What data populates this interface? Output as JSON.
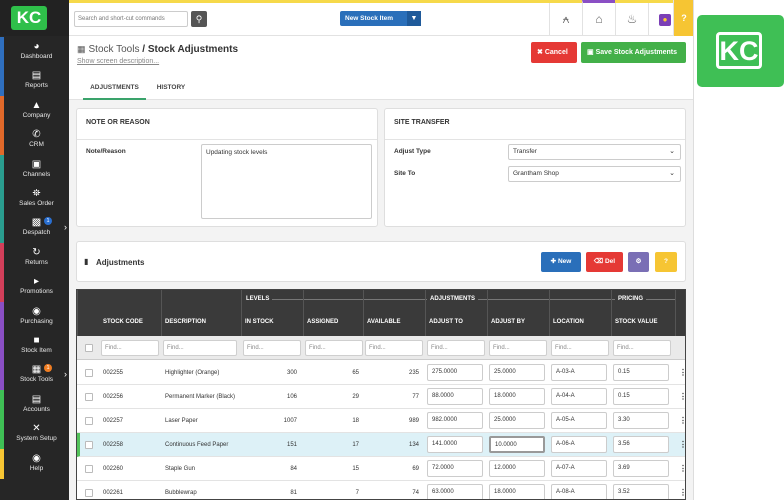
{
  "brand": {
    "logo_text": "KC",
    "accent": "#3fbf55"
  },
  "sidebar": {
    "items": [
      {
        "label": "Dashboard",
        "icon": "dashboard-icon",
        "stripe": "#2f6fbf"
      },
      {
        "label": "Reports",
        "icon": "reports-icon",
        "stripe": "#2f6fbf"
      },
      {
        "label": "Company",
        "icon": "company-icon",
        "stripe": "#e0692a"
      },
      {
        "label": "CRM",
        "icon": "phone-icon",
        "stripe": "#e0692a"
      },
      {
        "label": "Channels",
        "icon": "channels-icon",
        "stripe": "#2a9d8f"
      },
      {
        "label": "Sales Order",
        "icon": "cart-icon",
        "stripe": "#2a9d8f"
      },
      {
        "label": "Despatch",
        "icon": "truck-icon",
        "stripe": "#2a9d8f",
        "badge": "1"
      },
      {
        "label": "Returns",
        "icon": "returns-icon",
        "stripe": "#d23f5a"
      },
      {
        "label": "Promotions",
        "icon": "megaphone-icon",
        "stripe": "#d23f5a"
      },
      {
        "label": "Purchasing",
        "icon": "purchasing-icon",
        "stripe": "#8a4fc4"
      },
      {
        "label": "Stock Item",
        "icon": "box-icon",
        "stripe": "#8a4fc4"
      },
      {
        "label": "Stock Tools",
        "icon": "stock-tools-icon",
        "stripe": "#8a4fc4",
        "badge": "1"
      },
      {
        "label": "Accounts",
        "icon": "accounts-icon",
        "stripe": "#3fbf55"
      },
      {
        "label": "System Setup",
        "icon": "wrench-icon",
        "stripe": "#3fbf55"
      },
      {
        "label": "Help",
        "icon": "help-icon",
        "stripe": "#f6c533"
      }
    ]
  },
  "topbar": {
    "search_placeholder": "Search and short-cut commands",
    "new_stock_label": "New Stock Item",
    "help_label": "?"
  },
  "header": {
    "section": "Stock Tools",
    "separator": " / ",
    "title": "Stock Adjustments",
    "show_desc": "Show screen description...",
    "cancel_label": "Cancel",
    "save_label": "Save Stock Adjustments"
  },
  "tabs": [
    {
      "label": "ADJUSTMENTS",
      "active": true
    },
    {
      "label": "HISTORY",
      "active": false
    }
  ],
  "note_panel": {
    "title": "NOTE OR REASON",
    "field_label": "Note/Reason",
    "value": "Updating stock levels"
  },
  "site_panel": {
    "title": "SITE TRANSFER",
    "adjust_type_label": "Adjust Type",
    "adjust_type_value": "Transfer",
    "site_to_label": "Site To",
    "site_to_value": "Grantham Shop"
  },
  "adjustments": {
    "title": "Adjustments",
    "new_label": "New",
    "del_label": "Del",
    "help_label": "?",
    "colors": {
      "new": "#2a6fba",
      "del": "#e53935",
      "gear": "#7a6fb5",
      "help": "#f6c533"
    }
  },
  "table": {
    "groups": [
      "LEVELS",
      "ADJUSTMENTS",
      "PRICING"
    ],
    "columns": [
      "STOCK CODE",
      "DESCRIPTION",
      "IN STOCK",
      "ASSIGNED",
      "AVAILABLE",
      "ADJUST TO",
      "ADJUST BY",
      "LOCATION",
      "STOCK VALUE"
    ],
    "filter_placeholder": "Find...",
    "rows": [
      {
        "code": "002255",
        "desc": "Highlighter (Orange)",
        "in_stock": "300",
        "assigned": "65",
        "available": "235",
        "adjust_to": "275.0000",
        "adjust_by": "25.0000",
        "location": "A-03-A",
        "value": "0.15"
      },
      {
        "code": "002256",
        "desc": "Permanent Marker (Black)",
        "in_stock": "106",
        "assigned": "29",
        "available": "77",
        "adjust_to": "88.0000",
        "adjust_by": "18.0000",
        "location": "A-04-A",
        "value": "0.15"
      },
      {
        "code": "002257",
        "desc": "Laser Paper",
        "in_stock": "1007",
        "assigned": "18",
        "available": "989",
        "adjust_to": "982.0000",
        "adjust_by": "25.0000",
        "location": "A-05-A",
        "value": "3.30"
      },
      {
        "code": "002258",
        "desc": "Continuous Feed Paper",
        "in_stock": "151",
        "assigned": "17",
        "available": "134",
        "adjust_to": "141.0000",
        "adjust_by": "10.0000",
        "location": "A-06-A",
        "value": "3.56"
      },
      {
        "code": "002260",
        "desc": "Staple Gun",
        "in_stock": "84",
        "assigned": "15",
        "available": "69",
        "adjust_to": "72.0000",
        "adjust_by": "12.0000",
        "location": "A-07-A",
        "value": "3.69"
      },
      {
        "code": "002261",
        "desc": "Bubblewrap",
        "in_stock": "81",
        "assigned": "7",
        "available": "74",
        "adjust_to": "63.0000",
        "adjust_by": "18.0000",
        "location": "A-08-A",
        "value": "3.52"
      }
    ]
  }
}
